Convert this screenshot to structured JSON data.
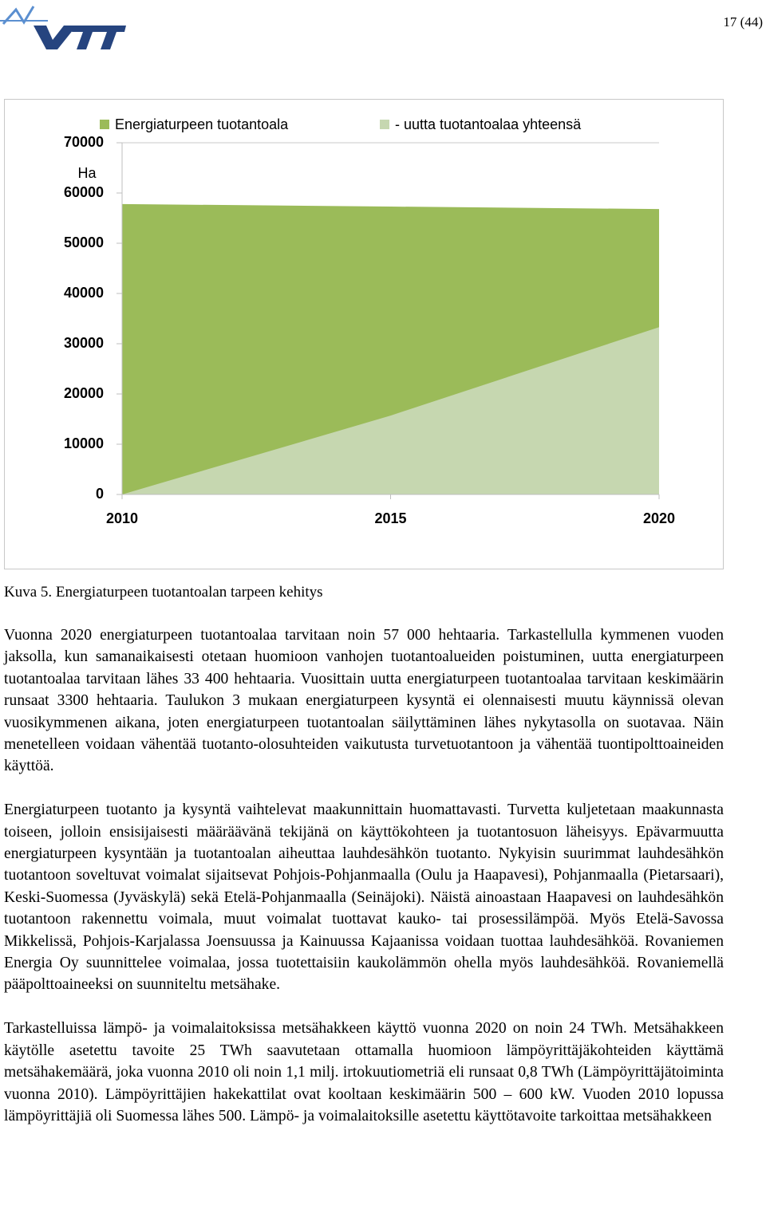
{
  "header": {
    "page_number": "17 (44)"
  },
  "chart_data": {
    "type": "area",
    "y_label": "Ha",
    "x": [
      2010,
      2015,
      2020
    ],
    "series": [
      {
        "name": "Energiaturpeen tuotantoala",
        "color": "#9bbb59",
        "values": [
          57800,
          57300,
          56800
        ]
      },
      {
        "name": "- uutta tuotantoalaa yhteensä",
        "color": "#c6d7b0",
        "values": [
          0,
          15700,
          33300
        ]
      }
    ],
    "xlim": [
      2010,
      2020
    ],
    "ylim": [
      0,
      70000
    ],
    "xticks": [
      2010,
      2015,
      2020
    ],
    "yticks": [
      0,
      10000,
      20000,
      30000,
      40000,
      50000,
      60000,
      70000
    ],
    "legend": "top"
  },
  "caption": "Kuva 5. Energiaturpeen tuotantoalan tarpeen kehitys",
  "paragraphs": [
    "Vuonna 2020 energiaturpeen tuotantoalaa tarvitaan noin 57 000 hehtaaria. Tarkastellulla kymmenen vuoden jaksolla, kun samanaikaisesti otetaan huomioon vanhojen tuotantoalueiden poistuminen, uutta energiaturpeen tuotantoalaa tarvitaan lähes 33 400 hehtaaria. Vuosittain uutta energiaturpeen tuotantoalaa tarvitaan keskimäärin runsaat 3300 hehtaaria. Taulukon 3 mukaan energiaturpeen kysyntä ei olennaisesti muutu käynnissä olevan vuosikymmenen aikana, joten energiaturpeen tuotantoalan säilyttäminen lähes nykytasolla on suotavaa. Näin menetelleen voidaan vähentää tuotanto-olosuhteiden vaikutusta turvetuotantoon ja vähentää tuontipolttoaineiden käyttöä.",
    "Energiaturpeen tuotanto ja kysyntä vaihtelevat maakunnittain huomattavasti. Turvetta kuljetetaan maakunnasta toiseen, jolloin ensisijaisesti määräävänä tekijänä on käyttökohteen ja tuotantosuon läheisyys. Epävarmuutta energiaturpeen kysyntään ja tuotantoalan aiheuttaa lauhdesähkön tuotanto. Nykyisin suurimmat lauhdesähkön tuotantoon soveltuvat voimalat sijaitsevat Pohjois-Pohjanmaalla (Oulu ja Haapavesi), Pohjanmaalla (Pietarsaari), Keski-Suomessa (Jyväskylä) sekä Etelä-Pohjanmaalla (Seinäjoki). Näistä ainoastaan Haapavesi on lauhdesähkön tuotantoon rakennettu voimala, muut voimalat tuottavat kauko- tai prosessilämpöä. Myös Etelä-Savossa Mikkelissä, Pohjois-Karjalassa Joensuussa ja Kainuussa Kajaanissa voidaan tuottaa lauhdesähköä. Rovaniemen Energia Oy suunnittelee voimalaa, jossa tuotettaisiin kaukolämmön ohella myös lauhdesähköä. Rovaniemellä pääpolttoaineeksi on suunniteltu metsähake.",
    "Tarkastelluissa lämpö- ja voimalaitoksissa metsähakkeen käyttö vuonna 2020 on noin 24 TWh. Metsähakkeen käytölle asetettu tavoite 25 TWh saavutetaan ottamalla huomioon lämpöyrittäjäkohteiden käyttämä metsähakemäärä, joka vuonna 2010 oli noin 1,1 milj. irtokuutiometriä eli runsaat 0,8 TWh (Lämpöyrittäjätoiminta vuonna 2010). Lämpöyrittäjien hakekattilat ovat kooltaan keskimäärin 500 – 600 kW. Vuoden 2010 lopussa lämpöyrittäjiä oli Suomessa lähes 500. Lämpö- ja voimalaitoksille asetettu käyttötavoite tarkoittaa metsähakkeen"
  ]
}
